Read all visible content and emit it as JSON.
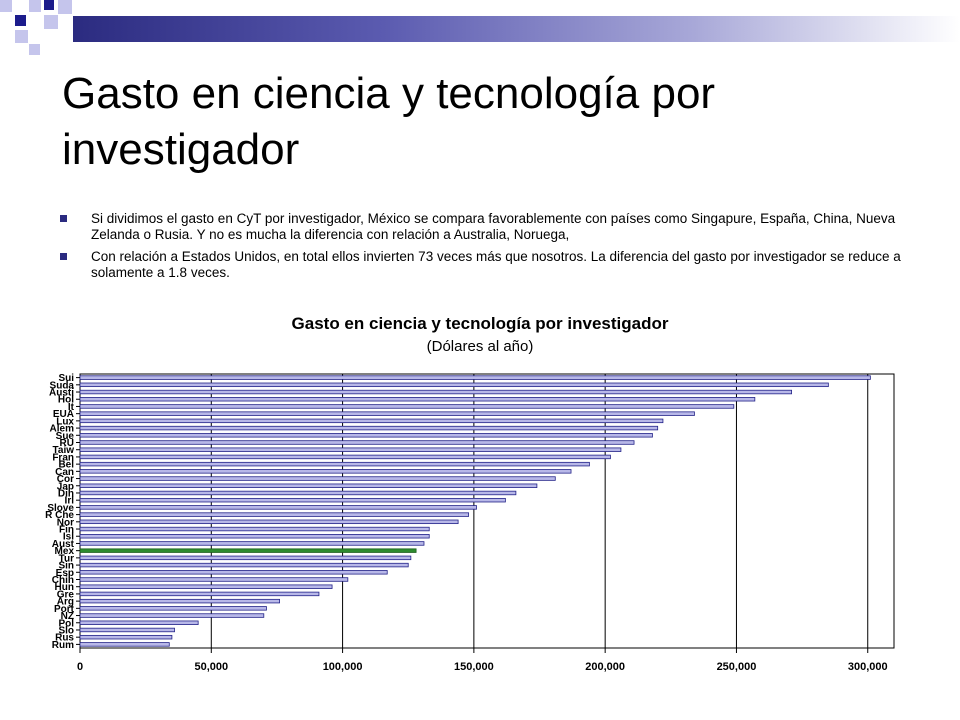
{
  "slide": {
    "title": "Gasto en ciencia y tecnología por investigador",
    "bullets": [
      "Si dividimos el gasto en CyT por investigador, México se compara favorablemente con países como Singapure, España, China, Nueva Zelanda o Rusia. Y no es mucha la diferencia con relación a Australia, Noruega,",
      "Con relación a Estados Unidos, en total ellos invierten 73 veces más que nosotros. La diferencia del gasto por investigador se reduce a solamente a 1.8 veces."
    ],
    "accent_color": "#2b2b80"
  },
  "chart_data": {
    "type": "bar",
    "orientation": "horizontal",
    "title": "Gasto en ciencia y tecnología por investigador",
    "subtitle": "(Dólares al año)",
    "xlabel": "",
    "ylabel": "",
    "xlim": [
      0,
      310000
    ],
    "x_ticks": [
      0,
      50000,
      100000,
      150000,
      200000,
      250000,
      300000
    ],
    "x_tick_labels": [
      "0",
      "50,000",
      "100,000",
      "150,000",
      "200,000",
      "250,000",
      "300,000"
    ],
    "grid": true,
    "legend": "none",
    "bar_color": "#b8b8e8",
    "highlight_color": "#2e8b2e",
    "highlight_category": "Mex",
    "categories": [
      "Sui",
      "Suda",
      "Austi",
      "Hol",
      "It",
      "EUA",
      "Lux",
      "Alem",
      "Sue",
      "RU",
      "Taiw",
      "Fran",
      "Bel",
      "Can",
      "Cor",
      "Jap",
      "Din",
      "Irl",
      "Slove",
      "R Che",
      "Nor",
      "Fin",
      "Isl",
      "Aust",
      "Mex",
      "Tur",
      "Sin",
      "Esp",
      "Chin",
      "Hun",
      "Gre",
      "Arg",
      "Port",
      "NZ",
      "Pol",
      "Slo",
      "Rus",
      "Rum"
    ],
    "values": [
      301000,
      285000,
      271000,
      257000,
      249000,
      234000,
      222000,
      220000,
      218000,
      211000,
      206000,
      202000,
      194000,
      187000,
      181000,
      174000,
      166000,
      162000,
      151000,
      148000,
      144000,
      133000,
      133000,
      131000,
      128000,
      126000,
      125000,
      117000,
      102000,
      96000,
      91000,
      76000,
      71000,
      70000,
      45000,
      36000,
      35000,
      34000
    ]
  }
}
